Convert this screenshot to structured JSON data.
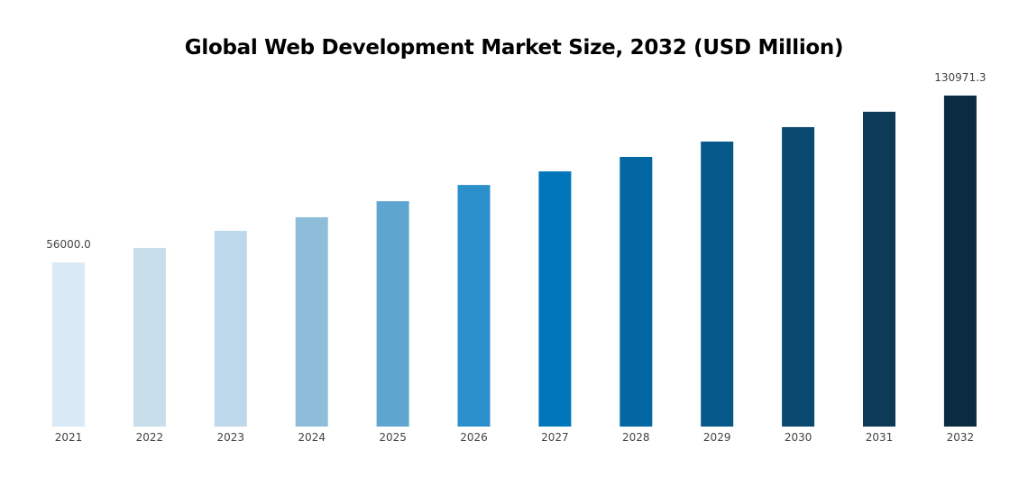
{
  "chart_data": {
    "type": "bar",
    "title": "Global Web Development Market Size, 2032 (USD Million)",
    "xlabel": "",
    "ylabel": "",
    "categories": [
      "2021",
      "2022",
      "2023",
      "2024",
      "2025",
      "2026",
      "2027",
      "2028",
      "2029",
      "2030",
      "2031",
      "2032"
    ],
    "values": [
      56000.0,
      62500,
      70200,
      76300,
      83500,
      90800,
      96900,
      103400,
      110300,
      116800,
      123700,
      130971.3
    ],
    "data_labels": {
      "0": "56000.0",
      "11": "130971.3"
    },
    "colors": [
      "#d9e9f5",
      "#c8deeb",
      "#bdd9eb",
      "#8dbdd8",
      "#5ea6cf",
      "#2a8fcb",
      "#0077bb",
      "#0467a4",
      "#05588a",
      "#0b4a70",
      "#0d3a56",
      "#0a2b40"
    ],
    "grid": false,
    "legend": "none"
  }
}
